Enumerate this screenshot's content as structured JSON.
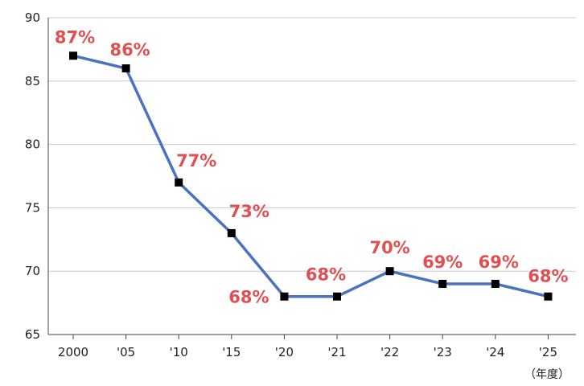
{
  "chart_data": {
    "type": "line",
    "categories": [
      "2000",
      "'05",
      "'10",
      "'15",
      "'20",
      "'21",
      "'22",
      "'23",
      "'24",
      "'25"
    ],
    "series": [
      {
        "values": [
          87,
          86,
          77,
          73,
          68,
          68,
          70,
          69,
          69,
          68
        ],
        "labels": [
          "87%",
          "86%",
          "77%",
          "73%",
          "68%",
          "68%",
          "70%",
          "69%",
          "69%",
          "68%"
        ],
        "color": "#4a72c0"
      }
    ],
    "ylim": [
      65,
      90
    ],
    "yticks": [
      "65",
      "70",
      "75",
      "80",
      "85",
      "90"
    ],
    "x_unit": "（年度）",
    "grid": true,
    "marker_color": "#000000",
    "label_color": "#e05050"
  }
}
